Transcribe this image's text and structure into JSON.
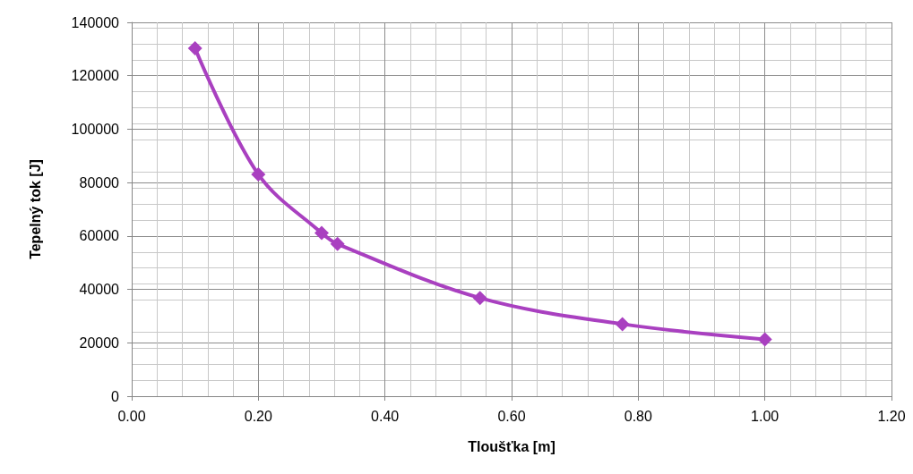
{
  "chart_data": {
    "type": "line",
    "xlabel": "Tloušťka [m]",
    "ylabel": "Tepelný tok [J]",
    "x": [
      0.1,
      0.2,
      0.3,
      0.325,
      0.55,
      0.775,
      1.0
    ],
    "series": [
      {
        "color": "#a940c0",
        "values": [
          130300,
          83100,
          61100,
          57000,
          36800,
          27000,
          21300
        ]
      }
    ],
    "xlim": [
      0,
      1.2
    ],
    "xticks": [
      {
        "value": 0,
        "label": "0.00"
      },
      {
        "value": 0.2,
        "label": "0.20"
      },
      {
        "value": 0.4,
        "label": "0.40"
      },
      {
        "value": 0.6,
        "label": "0.60"
      },
      {
        "value": 0.8,
        "label": "0.80"
      },
      {
        "value": 1.0,
        "label": "1.00"
      },
      {
        "value": 1.2,
        "label": "1.20"
      }
    ],
    "ylim": [
      0,
      140000
    ],
    "yticks": [
      0,
      20000,
      40000,
      60000,
      80000,
      100000,
      120000,
      140000
    ],
    "grid": true,
    "marker": "diamond",
    "line_style": "solid"
  }
}
